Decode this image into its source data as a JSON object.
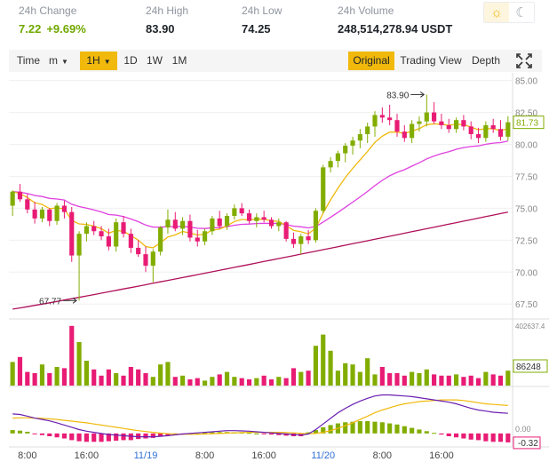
{
  "stats": [
    {
      "label": "24h Change",
      "value": "7.22",
      "pct": "+9.69%",
      "green": true
    },
    {
      "label": "24h High",
      "value": "83.90"
    },
    {
      "label": "24h Low",
      "value": "74.25"
    },
    {
      "label": "24h Volume",
      "value": "248,514,278.94 USDT"
    }
  ],
  "theme": {
    "light_icon": "☼",
    "dark_icon": "☾"
  },
  "toolbar": {
    "time": "Time",
    "minute": "m",
    "hour": "1H",
    "day": "1D",
    "week": "1W",
    "month": "1M",
    "original": "Original",
    "trading_view": "Trading View",
    "depth": "Depth",
    "fullscreen_icon": "expand-icon"
  },
  "colors": {
    "up": "#82ad00",
    "down": "#e81c74",
    "accent": "#f0b90b",
    "ma7": "#f0b90b",
    "ma25": "#e040e0",
    "ma99": "#b0105a",
    "dif": "#6a1fb0"
  },
  "chart_data": {
    "type": "candlestick",
    "price_axis": {
      "ticks": [
        "85.00",
        "82.50",
        "80.00",
        "77.50",
        "75.00",
        "72.50",
        "70.00",
        "67.50"
      ],
      "min": 66.4,
      "max": 85.6
    },
    "volume_axis": {
      "top_label": "402637.4",
      "current_label": "86248"
    },
    "macd_axis": {
      "zero_label": "0.00",
      "current_label": "-0.32"
    },
    "x_ticks": [
      "8:00",
      "16:00",
      "11/19",
      "8:00",
      "16:00",
      "11/20",
      "8:00",
      "16:00"
    ],
    "high_marker": {
      "label": "83.90",
      "value": 83.9
    },
    "low_marker": {
      "label": "67.77",
      "value": 67.77
    },
    "current_price": "81.73",
    "candles": [
      [
        75.2,
        76.4,
        74.4,
        76.3
      ],
      [
        76.3,
        76.9,
        75.5,
        75.7
      ],
      [
        75.7,
        76.1,
        74.6,
        74.9
      ],
      [
        74.9,
        75.5,
        73.8,
        74.2
      ],
      [
        74.2,
        75.1,
        73.9,
        74.9
      ],
      [
        74.9,
        75.0,
        73.6,
        74.0
      ],
      [
        74.0,
        75.4,
        73.7,
        75.2
      ],
      [
        75.2,
        75.6,
        74.2,
        74.7
      ],
      [
        74.7,
        75.1,
        70.8,
        71.3
      ],
      [
        71.3,
        73.2,
        67.77,
        73.0
      ],
      [
        73.0,
        73.9,
        72.4,
        73.6
      ],
      [
        73.6,
        74.0,
        72.9,
        73.2
      ],
      [
        73.2,
        73.6,
        72.5,
        72.8
      ],
      [
        72.8,
        73.4,
        71.7,
        72.0
      ],
      [
        72.0,
        74.2,
        71.6,
        73.9
      ],
      [
        73.9,
        74.4,
        72.7,
        73.0
      ],
      [
        73.0,
        73.4,
        71.5,
        71.9
      ],
      [
        71.9,
        72.5,
        71.2,
        71.4
      ],
      [
        71.4,
        72.0,
        70.0,
        70.5
      ],
      [
        70.5,
        71.8,
        69.2,
        71.6
      ],
      [
        71.6,
        73.6,
        71.3,
        73.5
      ],
      [
        73.5,
        74.9,
        73.0,
        74.1
      ],
      [
        74.1,
        74.7,
        73.2,
        73.4
      ],
      [
        73.4,
        74.3,
        72.9,
        74.0
      ],
      [
        74.0,
        74.5,
        72.4,
        72.7
      ],
      [
        72.7,
        73.3,
        72.0,
        72.4
      ],
      [
        72.4,
        73.4,
        72.1,
        73.2
      ],
      [
        73.2,
        74.4,
        72.9,
        74.2
      ],
      [
        74.2,
        74.8,
        73.4,
        73.6
      ],
      [
        73.6,
        74.6,
        73.3,
        74.4
      ],
      [
        74.4,
        75.3,
        74.1,
        75.0
      ],
      [
        75.0,
        75.4,
        74.4,
        74.6
      ],
      [
        74.6,
        74.9,
        73.8,
        74.0
      ],
      [
        74.0,
        74.6,
        73.5,
        74.3
      ],
      [
        74.3,
        74.8,
        73.9,
        74.1
      ],
      [
        74.1,
        74.3,
        73.4,
        73.6
      ],
      [
        73.6,
        74.2,
        73.2,
        73.9
      ],
      [
        73.9,
        74.0,
        72.4,
        72.6
      ],
      [
        72.6,
        73.1,
        71.9,
        72.2
      ],
      [
        72.2,
        73.0,
        71.4,
        72.8
      ],
      [
        72.8,
        73.3,
        72.2,
        72.5
      ],
      [
        72.5,
        75.0,
        72.3,
        74.8
      ],
      [
        74.8,
        78.4,
        74.6,
        78.2
      ],
      [
        78.2,
        79.0,
        77.8,
        78.7
      ],
      [
        78.7,
        79.5,
        78.2,
        79.3
      ],
      [
        79.3,
        80.1,
        78.6,
        79.9
      ],
      [
        79.9,
        80.6,
        79.2,
        80.3
      ],
      [
        80.3,
        81.2,
        79.7,
        80.8
      ],
      [
        80.8,
        81.7,
        80.1,
        81.4
      ],
      [
        81.4,
        82.6,
        80.6,
        82.3
      ],
      [
        82.3,
        82.9,
        81.7,
        82.1
      ],
      [
        82.1,
        83.1,
        81.5,
        81.9
      ],
      [
        81.9,
        82.4,
        80.6,
        81.0
      ],
      [
        81.0,
        81.5,
        80.2,
        80.5
      ],
      [
        80.5,
        81.9,
        80.1,
        81.6
      ],
      [
        81.6,
        82.2,
        81.0,
        81.8
      ],
      [
        81.8,
        83.9,
        81.4,
        82.5
      ],
      [
        82.5,
        83.3,
        81.6,
        81.8
      ],
      [
        81.8,
        82.4,
        81.2,
        81.5
      ],
      [
        81.5,
        82.0,
        80.9,
        81.2
      ],
      [
        81.2,
        82.1,
        80.9,
        81.9
      ],
      [
        81.9,
        82.3,
        81.1,
        81.4
      ],
      [
        81.4,
        81.8,
        80.4,
        80.8
      ],
      [
        80.8,
        81.3,
        80.1,
        80.5
      ],
      [
        80.5,
        81.8,
        80.2,
        81.5
      ],
      [
        81.5,
        82.0,
        80.9,
        81.2
      ],
      [
        81.2,
        81.9,
        80.3,
        80.6
      ],
      [
        80.6,
        82.2,
        80.3,
        81.73
      ]
    ],
    "volumes": [
      38,
      46,
      22,
      20,
      34,
      20,
      30,
      28,
      96,
      70,
      40,
      26,
      16,
      26,
      20,
      16,
      30,
      26,
      20,
      14,
      34,
      38,
      14,
      16,
      10,
      12,
      8,
      14,
      18,
      22,
      14,
      12,
      10,
      12,
      16,
      10,
      14,
      12,
      28,
      22,
      24,
      64,
      82,
      56,
      24,
      36,
      34,
      22,
      44,
      18,
      30,
      20,
      20,
      16,
      22,
      20,
      26,
      18,
      16,
      16,
      18,
      14,
      16,
      12,
      22,
      18,
      16,
      24
    ],
    "macd_hist": [
      0.12,
      0.1,
      0.06,
      -0.02,
      -0.06,
      -0.1,
      -0.14,
      -0.18,
      -0.24,
      -0.28,
      -0.3,
      -0.3,
      -0.3,
      -0.28,
      -0.26,
      -0.24,
      -0.24,
      -0.2,
      -0.18,
      -0.16,
      -0.12,
      -0.08,
      -0.06,
      -0.04,
      -0.02,
      0.0,
      0.02,
      0.04,
      0.05,
      0.05,
      0.04,
      0.03,
      0.02,
      0.0,
      -0.02,
      -0.04,
      -0.06,
      -0.08,
      -0.1,
      -0.1,
      0.04,
      0.12,
      0.22,
      0.3,
      0.36,
      0.4,
      0.42,
      0.44,
      0.44,
      0.42,
      0.4,
      0.36,
      0.32,
      0.26,
      0.2,
      0.14,
      0.08,
      0.02,
      -0.04,
      -0.1,
      -0.14,
      -0.18,
      -0.22,
      -0.24,
      -0.28,
      -0.3,
      -0.3,
      -0.32
    ],
    "macd_dif": [
      0.7,
      0.68,
      0.62,
      0.55,
      0.5,
      0.45,
      0.38,
      0.3,
      0.22,
      0.14,
      0.08,
      0.04,
      0.0,
      -0.04,
      -0.06,
      -0.08,
      -0.1,
      -0.12,
      -0.12,
      -0.12,
      -0.1,
      -0.08,
      -0.05,
      -0.02,
      0.0,
      0.02,
      0.04,
      0.06,
      0.08,
      0.1,
      0.1,
      0.09,
      0.08,
      0.06,
      0.04,
      0.02,
      0.0,
      -0.02,
      -0.04,
      -0.06,
      -0.02,
      0.14,
      0.34,
      0.54,
      0.74,
      0.9,
      1.04,
      1.16,
      1.26,
      1.34,
      1.38,
      1.38,
      1.36,
      1.34,
      1.32,
      1.28,
      1.24,
      1.2,
      1.16,
      1.12,
      1.06,
      0.98,
      0.9,
      0.84,
      0.8,
      0.76,
      0.74,
      0.72
    ],
    "macd_dea": [
      0.55,
      0.56,
      0.56,
      0.55,
      0.54,
      0.52,
      0.5,
      0.47,
      0.44,
      0.41,
      0.38,
      0.34,
      0.3,
      0.26,
      0.22,
      0.18,
      0.14,
      0.1,
      0.07,
      0.04,
      0.01,
      -0.01,
      -0.02,
      -0.03,
      -0.03,
      -0.03,
      -0.02,
      -0.01,
      0.0,
      0.01,
      0.02,
      0.03,
      0.04,
      0.04,
      0.04,
      0.04,
      0.04,
      0.03,
      0.02,
      0.0,
      -0.01,
      0.0,
      0.04,
      0.1,
      0.18,
      0.28,
      0.38,
      0.5,
      0.62,
      0.74,
      0.84,
      0.92,
      1.0,
      1.06,
      1.1,
      1.14,
      1.16,
      1.18,
      1.2,
      1.2,
      1.2,
      1.18,
      1.14,
      1.1,
      1.06,
      1.04,
      1.02,
      1.0
    ]
  }
}
